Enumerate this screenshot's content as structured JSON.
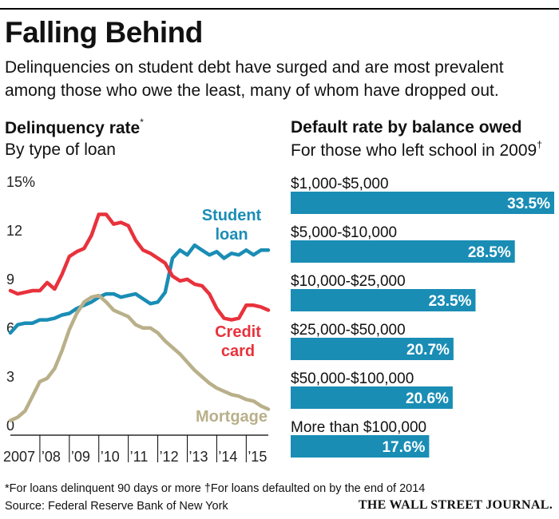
{
  "header": {
    "title": "Falling Behind",
    "subtitle": "Delinquencies on student debt have surged and are most prevalent among those who owe the least, many of whom have dropped out."
  },
  "footer": {
    "footnote": "*For loans delinquent 90 days or more   †For loans defaulted on by the end of 2014",
    "source": "Source: Federal Reserve Bank of New York",
    "logo": "THE WALL STREET JOURNAL."
  },
  "colors": {
    "student_loan": "#1a8db5",
    "credit_card": "#e8323c",
    "mortgage": "#b9b08a",
    "bar": "#1a8db5"
  },
  "chart_data": [
    {
      "type": "line",
      "title": "Delinquency rate",
      "title_mark": "*",
      "subtitle": "By type of loan",
      "ylim": [
        0,
        15
      ],
      "yticks": [
        0,
        3,
        6,
        9,
        12,
        15
      ],
      "ytick_labels": [
        "0",
        "3",
        "6",
        "9",
        "12",
        "15%"
      ],
      "xlim": [
        2007,
        2015.75
      ],
      "xtick_labels": [
        {
          "label": "2007",
          "x": 2007
        },
        {
          "label": "’08",
          "x": 2008
        },
        {
          "label": "’09",
          "x": 2009
        },
        {
          "label": "’10",
          "x": 2010
        },
        {
          "label": "’11",
          "x": 2011
        },
        {
          "label": "’12",
          "x": 2012
        },
        {
          "label": "’13",
          "x": 2013
        },
        {
          "label": "’14",
          "x": 2014
        },
        {
          "label": "’15",
          "x": 2015
        }
      ],
      "grid": false,
      "series": [
        {
          "name": "Student loan",
          "label_lines": [
            "Student",
            "loan"
          ],
          "color_key": "student_loan",
          "points": [
            [
              2007.0,
              6.3
            ],
            [
              2007.25,
              6.8
            ],
            [
              2007.5,
              6.9
            ],
            [
              2007.75,
              6.9
            ],
            [
              2008.0,
              7.1
            ],
            [
              2008.25,
              7.1
            ],
            [
              2008.5,
              7.2
            ],
            [
              2008.75,
              7.4
            ],
            [
              2009.0,
              7.5
            ],
            [
              2009.25,
              7.8
            ],
            [
              2009.5,
              8.0
            ],
            [
              2009.75,
              8.2
            ],
            [
              2010.0,
              8.5
            ],
            [
              2010.25,
              8.7
            ],
            [
              2010.5,
              8.7
            ],
            [
              2010.75,
              8.5
            ],
            [
              2011.0,
              8.6
            ],
            [
              2011.25,
              8.7
            ],
            [
              2011.5,
              8.4
            ],
            [
              2011.75,
              8.1
            ],
            [
              2012.0,
              8.2
            ],
            [
              2012.25,
              8.8
            ],
            [
              2012.5,
              10.9
            ],
            [
              2012.75,
              11.4
            ],
            [
              2013.0,
              11.1
            ],
            [
              2013.25,
              11.7
            ],
            [
              2013.5,
              11.4
            ],
            [
              2013.75,
              11.1
            ],
            [
              2014.0,
              11.3
            ],
            [
              2014.25,
              10.9
            ],
            [
              2014.5,
              11.2
            ],
            [
              2014.75,
              11.1
            ],
            [
              2015.0,
              11.4
            ],
            [
              2015.25,
              11.1
            ],
            [
              2015.5,
              11.4
            ],
            [
              2015.75,
              11.4
            ]
          ]
        },
        {
          "name": "Credit card",
          "label_lines": [
            "Credit",
            "card"
          ],
          "color_key": "credit_card",
          "points": [
            [
              2007.0,
              8.9
            ],
            [
              2007.25,
              8.7
            ],
            [
              2007.5,
              8.8
            ],
            [
              2007.75,
              8.9
            ],
            [
              2008.0,
              8.9
            ],
            [
              2008.25,
              9.4
            ],
            [
              2008.5,
              9.0
            ],
            [
              2008.75,
              9.9
            ],
            [
              2009.0,
              11.0
            ],
            [
              2009.25,
              11.3
            ],
            [
              2009.5,
              11.5
            ],
            [
              2009.75,
              12.3
            ],
            [
              2010.0,
              13.6
            ],
            [
              2010.25,
              13.6
            ],
            [
              2010.5,
              13.0
            ],
            [
              2010.75,
              13.1
            ],
            [
              2011.0,
              12.9
            ],
            [
              2011.25,
              12.0
            ],
            [
              2011.5,
              11.4
            ],
            [
              2011.75,
              11.2
            ],
            [
              2012.0,
              10.9
            ],
            [
              2012.25,
              10.6
            ],
            [
              2012.5,
              9.8
            ],
            [
              2012.75,
              9.5
            ],
            [
              2013.0,
              9.6
            ],
            [
              2013.25,
              9.3
            ],
            [
              2013.5,
              9.2
            ],
            [
              2013.75,
              8.7
            ],
            [
              2014.0,
              7.8
            ],
            [
              2014.25,
              7.2
            ],
            [
              2014.5,
              7.1
            ],
            [
              2014.75,
              7.2
            ],
            [
              2015.0,
              8.0
            ],
            [
              2015.25,
              8.0
            ],
            [
              2015.5,
              7.9
            ],
            [
              2015.75,
              7.7
            ]
          ]
        },
        {
          "name": "Mortgage",
          "label_lines": [
            "Mortgage"
          ],
          "color_key": "mortgage",
          "points": [
            [
              2007.0,
              0.9
            ],
            [
              2007.25,
              1.1
            ],
            [
              2007.5,
              1.5
            ],
            [
              2007.75,
              2.4
            ],
            [
              2008.0,
              3.3
            ],
            [
              2008.25,
              3.5
            ],
            [
              2008.5,
              4.1
            ],
            [
              2008.75,
              5.2
            ],
            [
              2009.0,
              6.5
            ],
            [
              2009.25,
              7.5
            ],
            [
              2009.5,
              8.2
            ],
            [
              2009.75,
              8.5
            ],
            [
              2010.0,
              8.6
            ],
            [
              2010.25,
              8.2
            ],
            [
              2010.5,
              7.7
            ],
            [
              2010.75,
              7.5
            ],
            [
              2011.0,
              7.3
            ],
            [
              2011.25,
              6.8
            ],
            [
              2011.5,
              6.6
            ],
            [
              2011.75,
              6.6
            ],
            [
              2012.0,
              6.3
            ],
            [
              2012.25,
              5.8
            ],
            [
              2012.5,
              5.4
            ],
            [
              2012.75,
              5.0
            ],
            [
              2013.0,
              4.5
            ],
            [
              2013.25,
              4.0
            ],
            [
              2013.5,
              3.6
            ],
            [
              2013.75,
              3.2
            ],
            [
              2014.0,
              2.9
            ],
            [
              2014.25,
              2.7
            ],
            [
              2014.5,
              2.5
            ],
            [
              2014.75,
              2.4
            ],
            [
              2015.0,
              2.2
            ],
            [
              2015.25,
              2.1
            ],
            [
              2015.5,
              1.8
            ],
            [
              2015.75,
              1.6
            ]
          ]
        }
      ]
    },
    {
      "type": "bar",
      "orientation": "horizontal",
      "title": "Default rate by balance owed",
      "subtitle": "For those who left school in 2009",
      "subtitle_mark": "†",
      "xlim": [
        0,
        33.5
      ],
      "categories": [
        "$1,000-$5,000",
        "$5,000-$10,000",
        "$10,000-$25,000",
        "$25,000-$50,000",
        "$50,000-$100,000",
        "More than $100,000"
      ],
      "values": [
        33.5,
        28.5,
        23.5,
        20.7,
        20.6,
        17.6
      ],
      "value_labels": [
        "33.5%",
        "28.5%",
        "23.5%",
        "20.7%",
        "20.6%",
        "17.6%"
      ]
    }
  ]
}
